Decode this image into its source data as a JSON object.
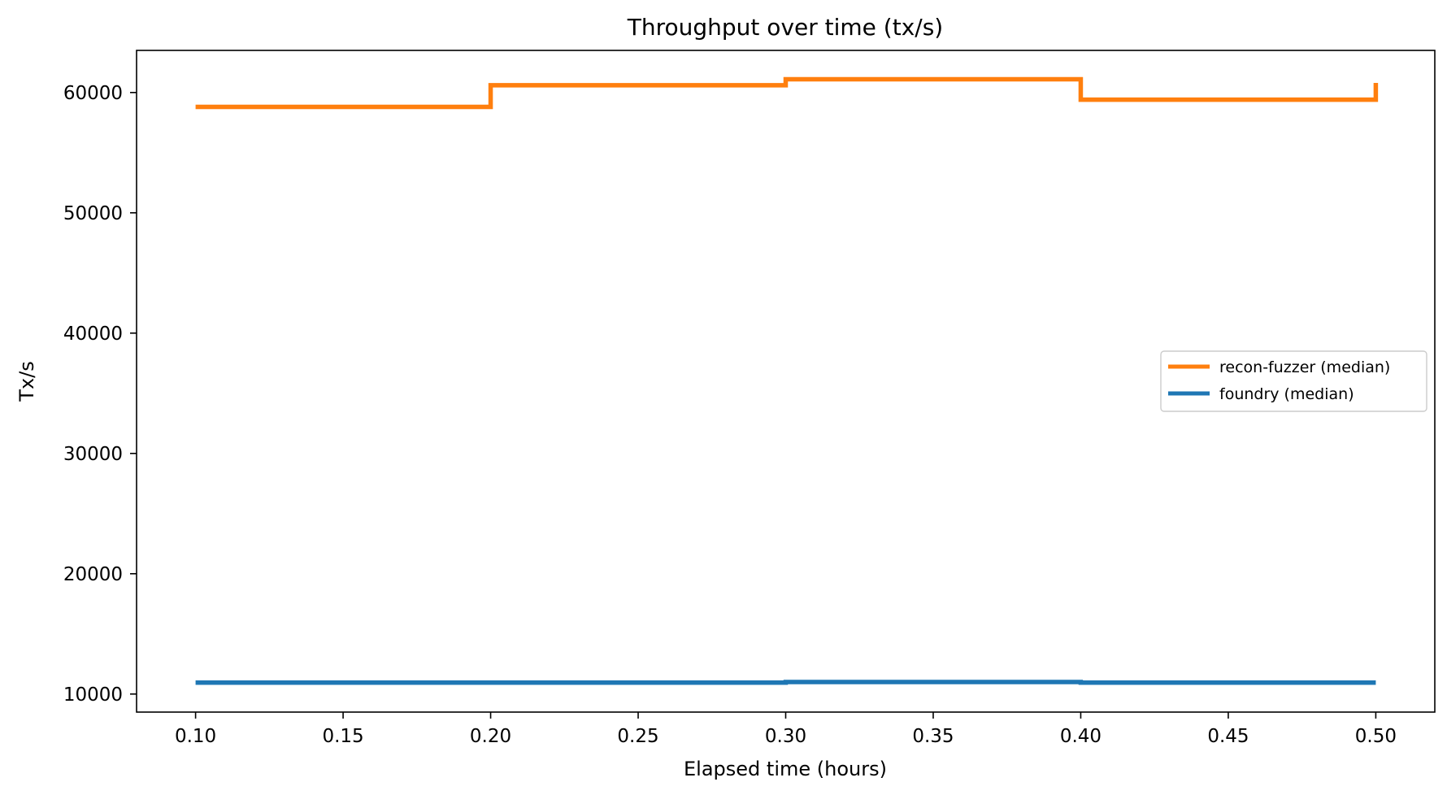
{
  "chart_data": {
    "type": "line",
    "step": "post",
    "title": "Throughput over time (tx/s)",
    "xlabel": "Elapsed time (hours)",
    "ylabel": "Tx/s",
    "xlim": [
      0.08,
      0.52
    ],
    "ylim": [
      8500,
      63500
    ],
    "xticks": [
      0.1,
      0.15,
      0.2,
      0.25,
      0.3,
      0.35,
      0.4,
      0.45,
      0.5
    ],
    "xtick_labels": [
      "0.10",
      "0.15",
      "0.20",
      "0.25",
      "0.30",
      "0.35",
      "0.40",
      "0.45",
      "0.50"
    ],
    "yticks": [
      10000,
      20000,
      30000,
      40000,
      50000,
      60000
    ],
    "ytick_labels": [
      "10000",
      "20000",
      "30000",
      "40000",
      "50000",
      "60000"
    ],
    "grid": false,
    "legend_position": "center-right",
    "series": [
      {
        "name": "recon-fuzzer (median)",
        "color": "#ff7f0e",
        "x": [
          0.1,
          0.2,
          0.3,
          0.4,
          0.5
        ],
        "y": [
          58800,
          60600,
          61100,
          59400,
          60800
        ]
      },
      {
        "name": "foundry (median)",
        "color": "#1f77b4",
        "x": [
          0.1,
          0.2,
          0.3,
          0.4,
          0.5
        ],
        "y": [
          10950,
          10950,
          11000,
          10950,
          10950
        ]
      }
    ]
  }
}
